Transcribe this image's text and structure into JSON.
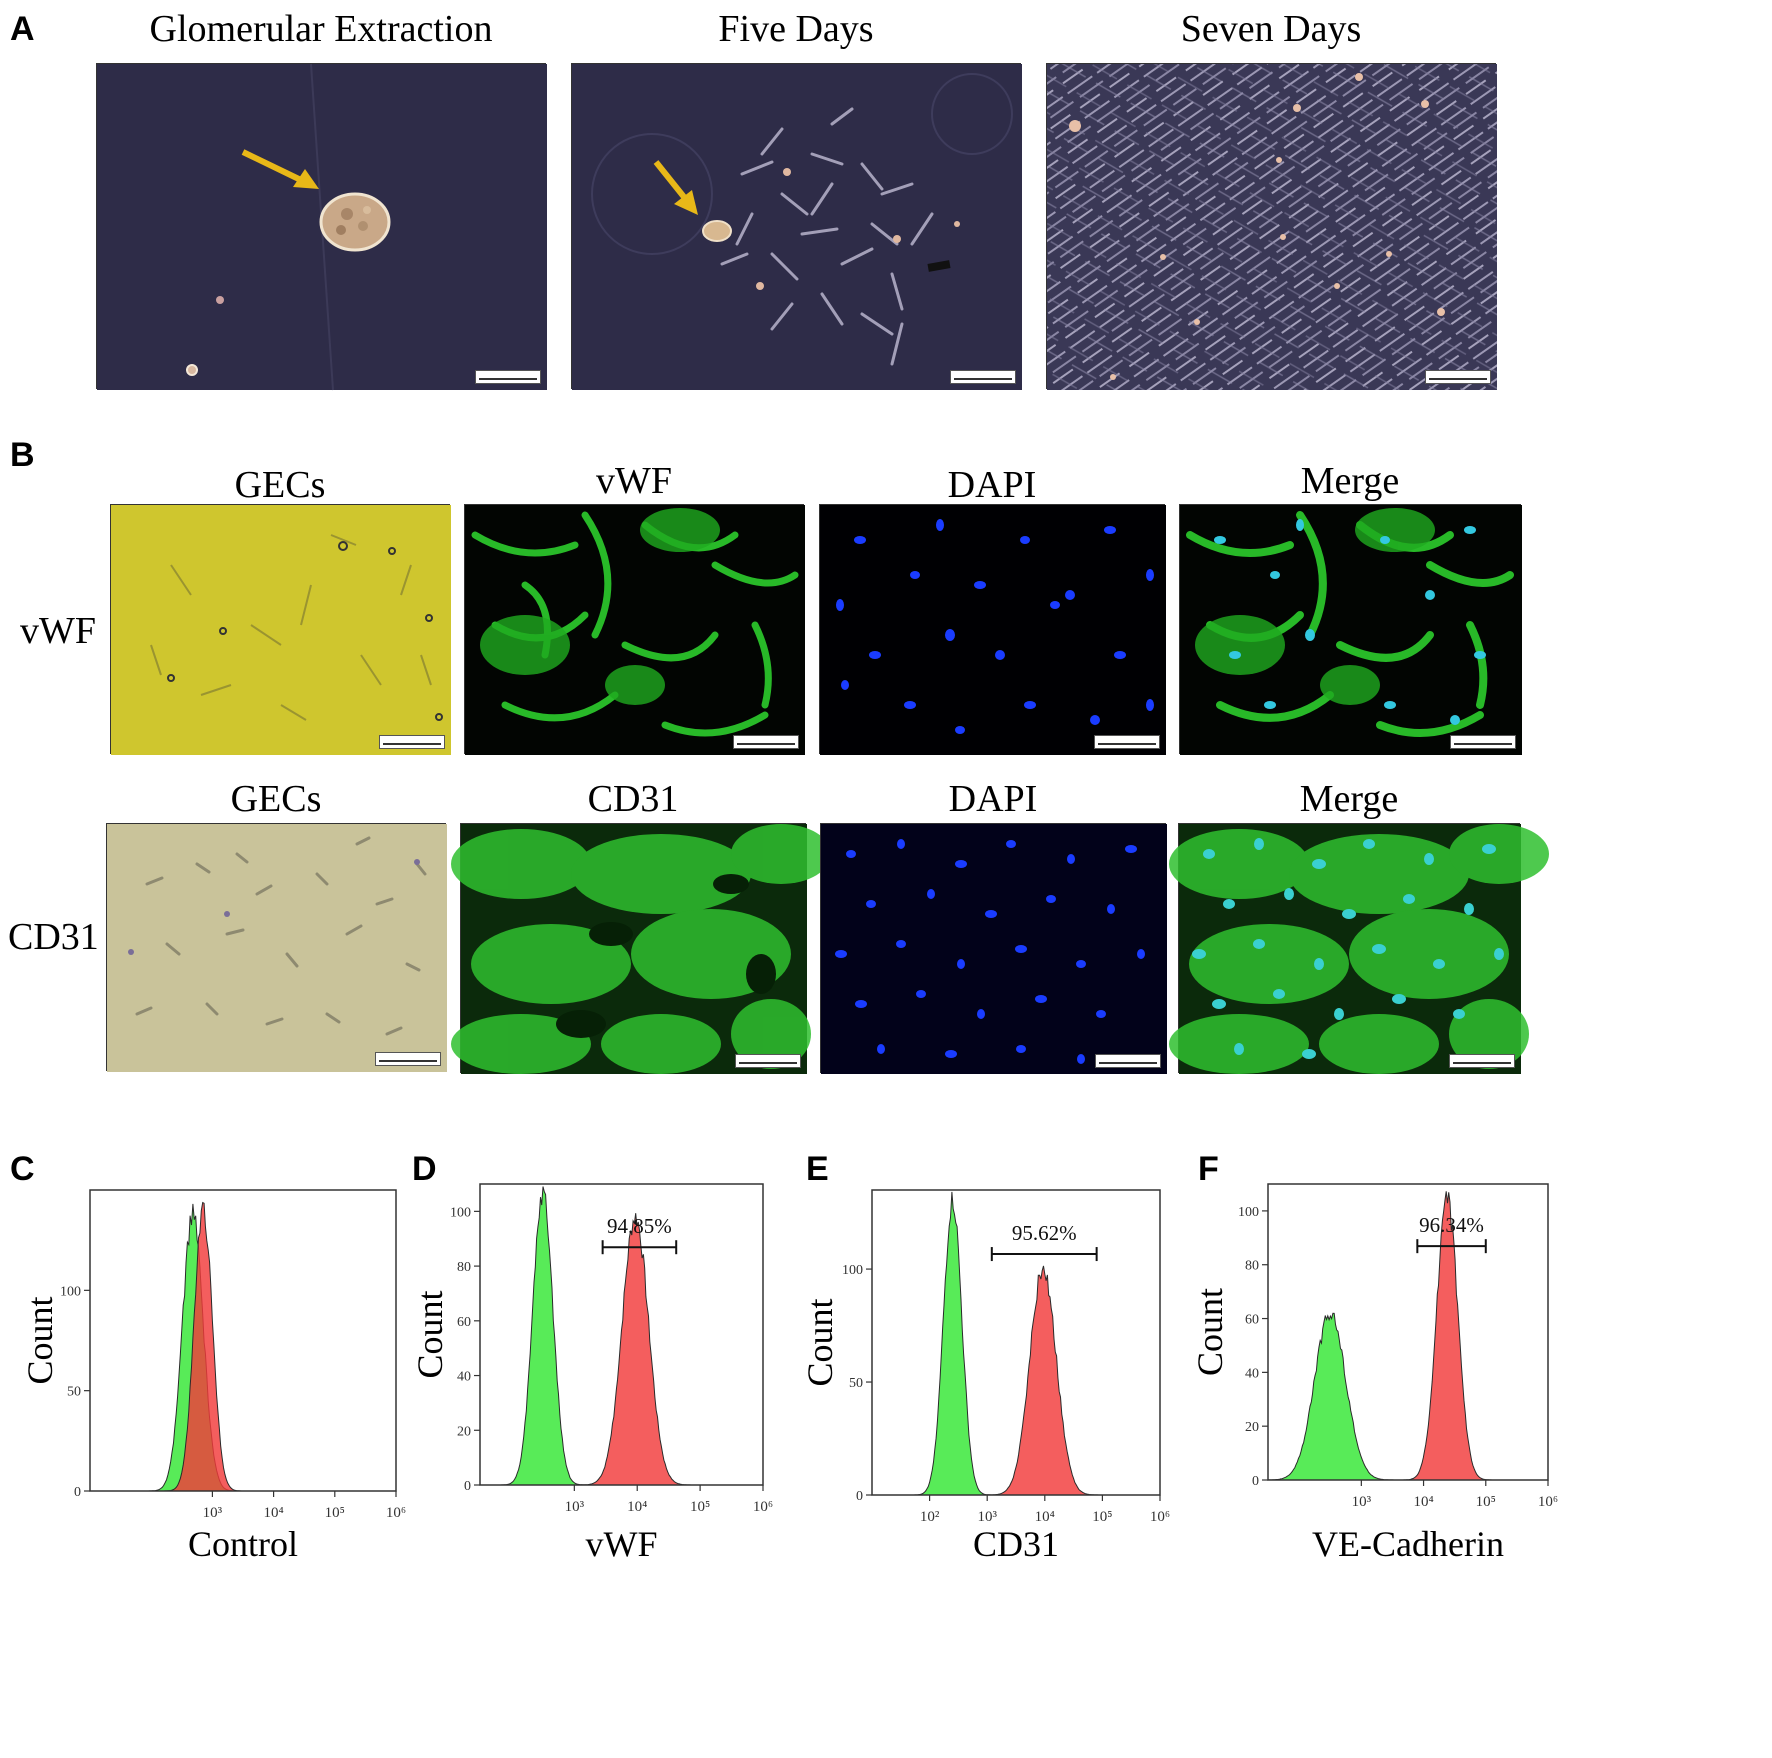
{
  "panels": {
    "A": {
      "label": "A",
      "titles": [
        "Glomerular Extraction",
        "Five Days",
        "Seven Days"
      ]
    },
    "B": {
      "label": "B",
      "row1": {
        "label": "vWF",
        "titles": [
          "GECs",
          "vWF",
          "DAPI",
          "Merge"
        ]
      },
      "row2": {
        "label": "CD31",
        "titles": [
          "GECs",
          "CD31",
          "DAPI",
          "Merge"
        ]
      }
    },
    "C": {
      "label": "C"
    },
    "D": {
      "label": "D"
    },
    "E": {
      "label": "E"
    },
    "F": {
      "label": "F"
    }
  },
  "colors": {
    "green_series": "#33e633",
    "red_series": "#f23a3a",
    "phase_bg": "#2e2c48",
    "bright_yellow": "#cfc62e",
    "bright_beige": "#c9c39a",
    "dapi_blue": "#1a3cff",
    "arrow": "#e8b818"
  },
  "chart_data": [
    {
      "id": "C",
      "type": "area",
      "xlabel": "Control",
      "ylabel": "Count",
      "xscale": "log",
      "xlim_exp": [
        1,
        6
      ],
      "x_ticks": [
        "10³",
        "10⁴",
        "10⁵",
        "10⁶"
      ],
      "y_ticks": [
        "0",
        "50",
        "100"
      ],
      "ylim": [
        0,
        150
      ],
      "gate_label": "",
      "series": [
        {
          "color": "green",
          "peak_log10": 2.68,
          "sigma": 0.17,
          "peak_count": 138
        },
        {
          "color": "red",
          "peak_log10": 2.85,
          "sigma": 0.15,
          "peak_count": 140
        }
      ]
    },
    {
      "id": "D",
      "type": "area",
      "xlabel": "vWF",
      "ylabel": "Count",
      "xscale": "log",
      "xlim_exp": [
        1.5,
        6
      ],
      "x_ticks": [
        "10³",
        "10⁴",
        "10⁵",
        "10⁶"
      ],
      "y_ticks": [
        "0",
        "20",
        "40",
        "60",
        "80",
        "100"
      ],
      "ylim": [
        0,
        110
      ],
      "gate_label": "94.85%",
      "gate_range_log10": [
        3.45,
        4.62
      ],
      "series": [
        {
          "color": "green",
          "peak_log10": 2.5,
          "sigma": 0.16,
          "peak_count": 107
        },
        {
          "color": "red",
          "peak_log10": 3.97,
          "sigma": 0.21,
          "peak_count": 98
        }
      ]
    },
    {
      "id": "E",
      "type": "area",
      "xlabel": "CD31",
      "ylabel": "Count",
      "xscale": "log",
      "xlim_exp": [
        1,
        6
      ],
      "x_ticks": [
        "10²",
        "10³",
        "10⁴",
        "10⁵",
        "10⁶"
      ],
      "y_ticks": [
        "0",
        "50",
        "100"
      ],
      "ylim": [
        0,
        135
      ],
      "gate_label": "95.62%",
      "gate_range_log10": [
        3.08,
        4.9
      ],
      "series": [
        {
          "color": "green",
          "peak_log10": 2.4,
          "sigma": 0.16,
          "peak_count": 130
        },
        {
          "color": "red",
          "peak_log10": 3.97,
          "sigma": 0.23,
          "peak_count": 100
        }
      ]
    },
    {
      "id": "F",
      "type": "area",
      "xlabel": "VE-Cadherin",
      "ylabel": "Count",
      "xscale": "log",
      "xlim_exp": [
        1.5,
        6
      ],
      "x_ticks": [
        "10³",
        "10⁴",
        "10⁵",
        "10⁶"
      ],
      "y_ticks": [
        "0",
        "20",
        "40",
        "60",
        "80",
        "100"
      ],
      "ylim": [
        0,
        110
      ],
      "gate_label": "96.34%",
      "gate_range_log10": [
        3.9,
        5.0
      ],
      "series": [
        {
          "color": "green",
          "peak_log10": 2.5,
          "sigma": 0.25,
          "peak_count": 62
        },
        {
          "color": "red",
          "peak_log10": 4.38,
          "sigma": 0.17,
          "peak_count": 104
        }
      ]
    }
  ]
}
